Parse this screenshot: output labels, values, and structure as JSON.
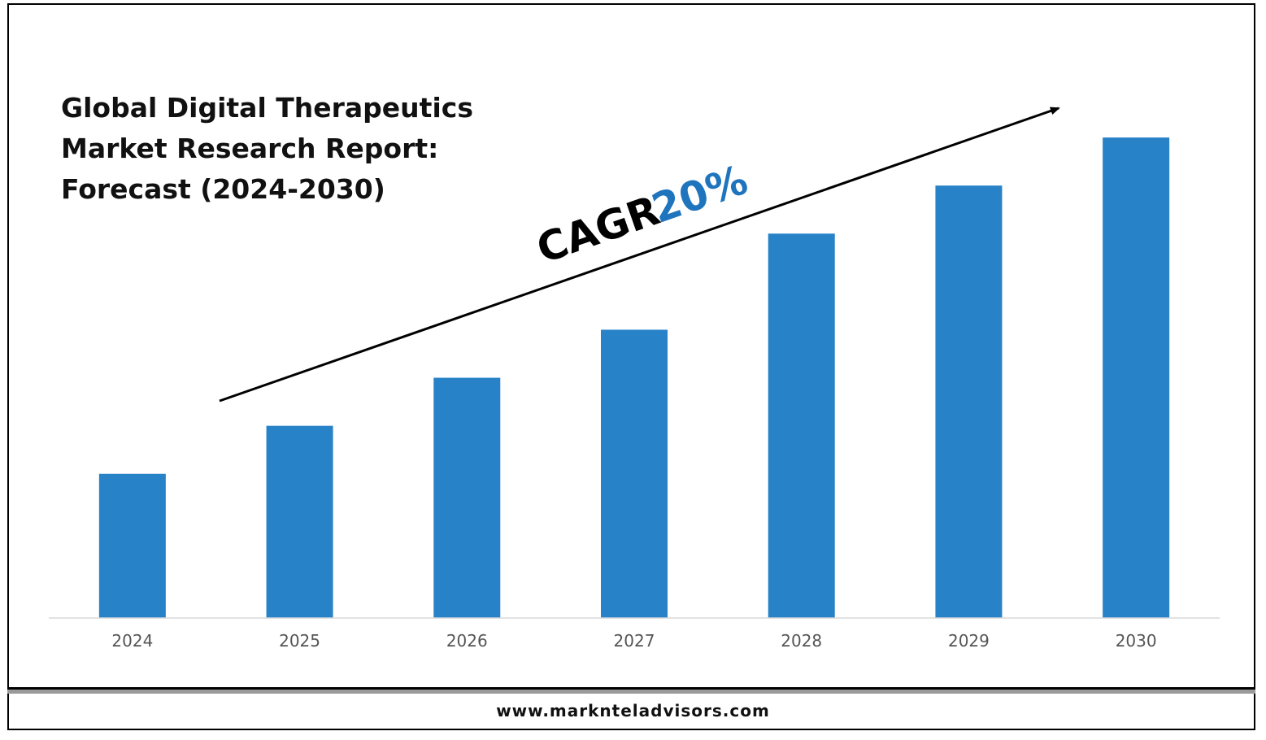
{
  "title_lines": [
    "Global Digital Therapeutics",
    "Market Research Report:",
    "Forecast (2024-2030)"
  ],
  "annotation": {
    "cagr_label": "CAGR",
    "cagr_value": "20%"
  },
  "footer": {
    "url": "www.marknteladvisors.com"
  },
  "colors": {
    "bar": "#2882C8",
    "cagr_value": "#1F74BE",
    "axis_text": "#555555"
  },
  "chart_data": {
    "type": "bar",
    "title": "Global Digital Therapeutics Market Research Report: Forecast (2024-2030)",
    "categories": [
      "2024",
      "2025",
      "2026",
      "2027",
      "2028",
      "2029",
      "2030"
    ],
    "values": [
      30,
      40,
      50,
      60,
      80,
      90,
      100
    ],
    "ylim": [
      0,
      110
    ],
    "yaxis_visible": false,
    "grid": false,
    "legend": "none"
  }
}
